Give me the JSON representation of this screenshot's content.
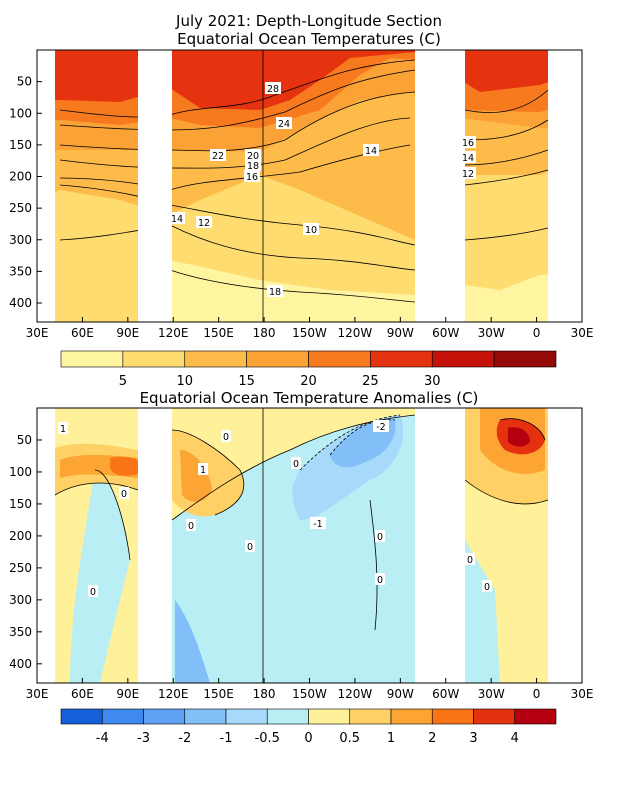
{
  "figure": {
    "title_line1": "July 2021: Depth-Longitude Section",
    "title_line2": "Equatorial Ocean Temperatures (C)",
    "anom_title": "Equatorial Ocean Temperature Anomalies (C)"
  },
  "chart_data": [
    {
      "type": "heatmap",
      "title": "July 2021: Depth-Longitude Section / Equatorial Ocean Temperatures (C)",
      "x_tick_labels": [
        "30E",
        "60E",
        "90E",
        "120E",
        "150E",
        "180",
        "150W",
        "120W",
        "90W",
        "60W",
        "30W",
        "0",
        "30E"
      ],
      "y_tick_labels": [
        "50",
        "100",
        "150",
        "200",
        "250",
        "300",
        "350",
        "400"
      ],
      "y_axis": {
        "min": 0,
        "max": 430,
        "inverted": true
      },
      "no_data_longitudes": [
        [
          "100E",
          "120E"
        ],
        [
          "80W",
          "50W"
        ],
        [
          "10E",
          "40E"
        ]
      ],
      "contour_labels": [
        "28",
        "24",
        "22",
        "20",
        "18",
        "16",
        "14",
        "12",
        "10",
        "18",
        "16",
        "14",
        "12",
        "14"
      ],
      "contour_levels": [
        10,
        12,
        14,
        16,
        18,
        20,
        22,
        24,
        26,
        28
      ],
      "colorbar": {
        "labels": [
          "5",
          "10",
          "15",
          "20",
          "25",
          "30"
        ],
        "colors": [
          "#fff5a0",
          "#fedc6f",
          "#fdbb4a",
          "#fba237",
          "#f77a1f",
          "#e5330f",
          "#c41209",
          "#930a06"
        ]
      }
    },
    {
      "type": "heatmap",
      "title": "Equatorial Ocean Temperature Anomalies (C)",
      "x_tick_labels": [
        "30E",
        "60E",
        "90E",
        "120E",
        "150E",
        "180",
        "150W",
        "120W",
        "90W",
        "60W",
        "30W",
        "0",
        "30E"
      ],
      "y_tick_labels": [
        "50",
        "100",
        "150",
        "200",
        "250",
        "300",
        "350",
        "400"
      ],
      "y_axis": {
        "min": 0,
        "max": 430,
        "inverted": true
      },
      "contour_labels": [
        "1",
        "0",
        "1",
        "0",
        "0",
        "0",
        "0",
        "-1",
        "-2",
        "0",
        "0",
        "0",
        "0",
        "0"
      ],
      "colorbar": {
        "labels": [
          "-4",
          "-3",
          "-2",
          "-1",
          "-0.5",
          "0",
          "0.5",
          "1",
          "2",
          "3",
          "4"
        ],
        "colors": [
          "#1560d8",
          "#3f8aee",
          "#5fa2f3",
          "#82bef8",
          "#a7d9fb",
          "#b9eef4",
          "#fff19a",
          "#fed065",
          "#fca434",
          "#f97416",
          "#e63111",
          "#b4000e"
        ]
      }
    }
  ]
}
